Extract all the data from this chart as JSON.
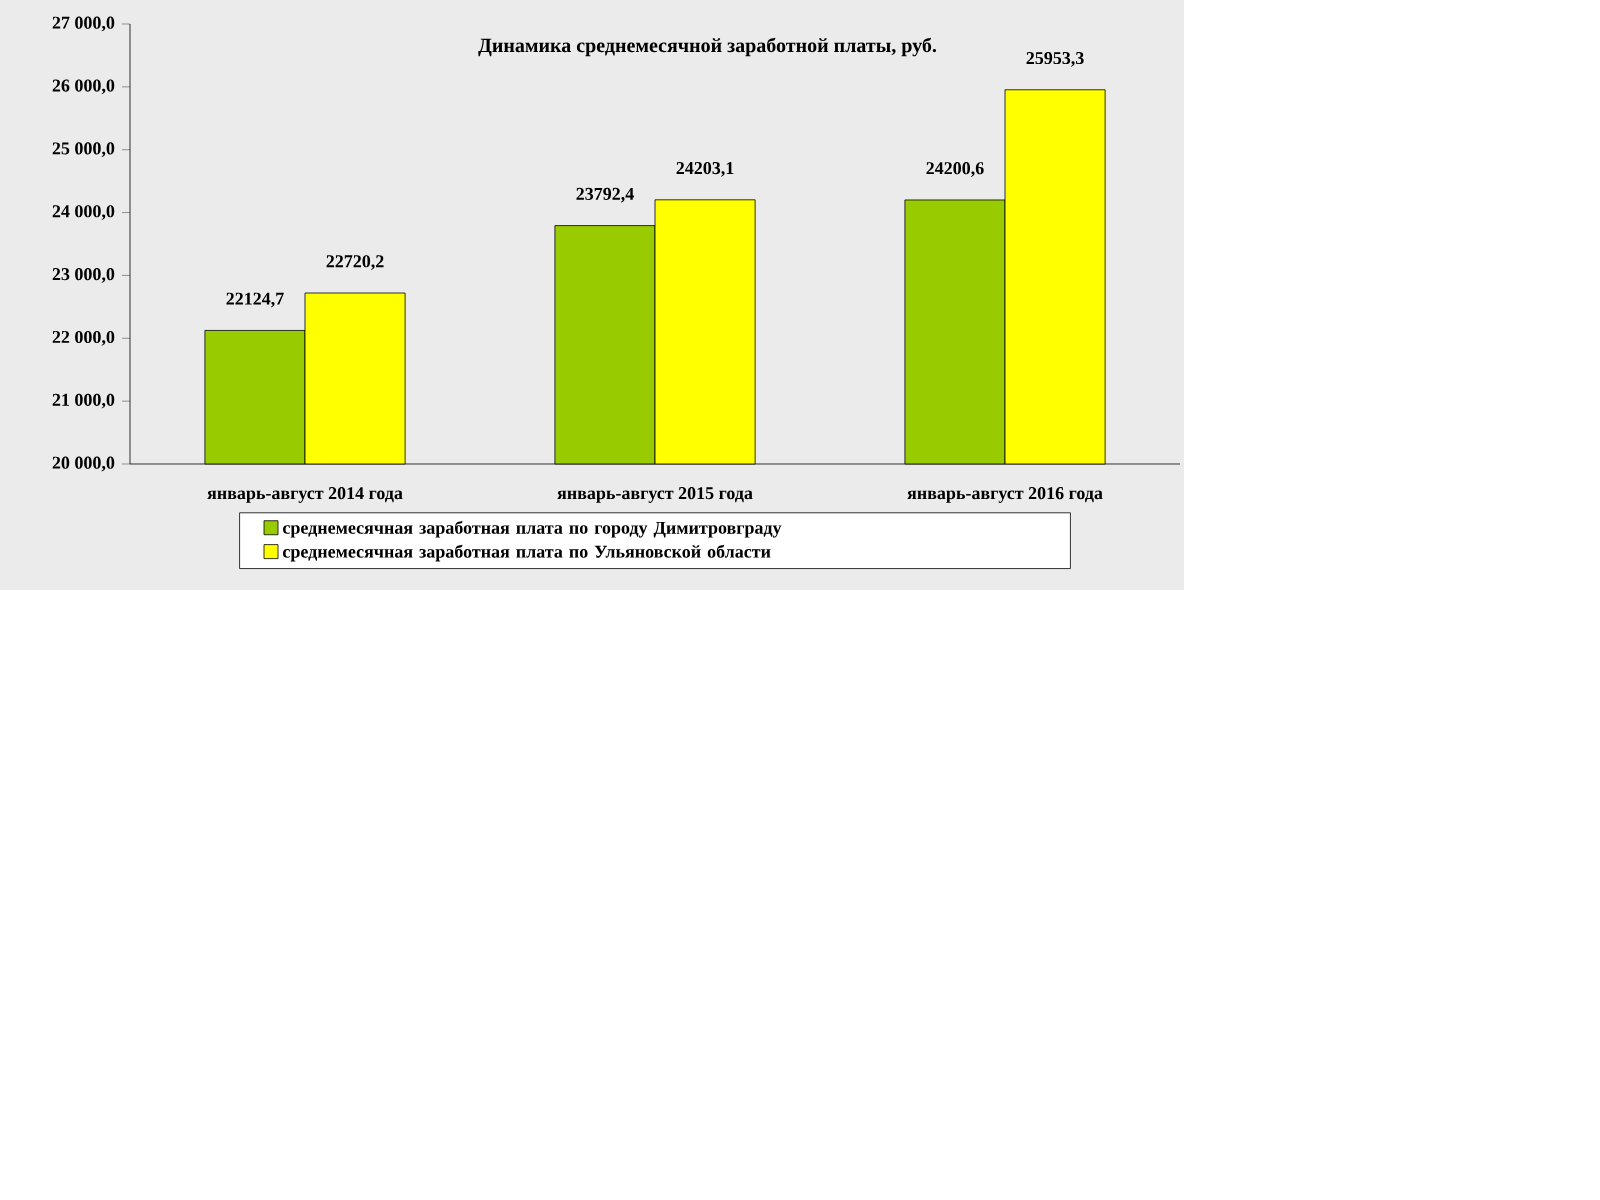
{
  "chart_data": {
    "type": "bar",
    "title": "Динамика среднемесячной заработной платы, руб.",
    "categories": [
      "январь-август 2014 года",
      "январь-август 2015 года",
      "январь-август 2016 года"
    ],
    "series": [
      {
        "name": "среднемесячная  заработная  плата  по  городу  Димитровграду",
        "color": "#99cc00",
        "values": [
          22124.7,
          23792.4,
          24200.6
        ],
        "value_labels": [
          "22124,7",
          "23792,4",
          "24200,6"
        ]
      },
      {
        "name": "среднемесячная  заработная  плата  по  Ульяновской области",
        "color": "#ffff00",
        "values": [
          22720.2,
          24203.1,
          25953.3
        ],
        "value_labels": [
          "22720,2",
          "24203,1",
          "25953,3"
        ]
      }
    ],
    "ylim": [
      20000,
      27000
    ],
    "yticks": [
      {
        "value": 20000,
        "label": "20 000,0"
      },
      {
        "value": 21000,
        "label": "21 000,0"
      },
      {
        "value": 22000,
        "label": "22 000,0"
      },
      {
        "value": 23000,
        "label": "23 000,0"
      },
      {
        "value": 24000,
        "label": "24 000,0"
      },
      {
        "value": 25000,
        "label": "25 000,0"
      },
      {
        "value": 26000,
        "label": "26 000,0"
      },
      {
        "value": 27000,
        "label": "27 000,0"
      }
    ],
    "grid": false,
    "legend": "bottom"
  }
}
